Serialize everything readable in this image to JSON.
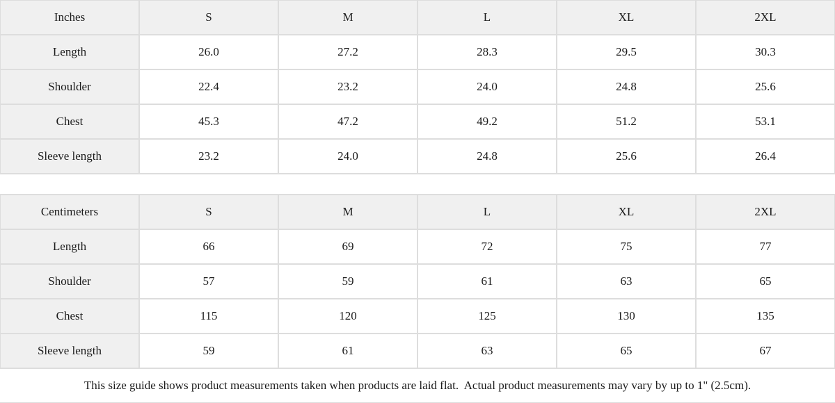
{
  "colors": {
    "header_bg": "#f0f0f0",
    "label_bg": "#f0f0f0",
    "border": "#dddddd",
    "text": "#1b1b1b",
    "page_bg": "#ffffff"
  },
  "tables": [
    {
      "unit": "Inches",
      "header": [
        "Inches",
        "S",
        "M",
        "L",
        "XL",
        "2XL"
      ],
      "rows": [
        {
          "label": "Length",
          "values": [
            "26.0",
            "27.2",
            "28.3",
            "29.5",
            "30.3"
          ]
        },
        {
          "label": "Shoulder",
          "values": [
            "22.4",
            "23.2",
            "24.0",
            "24.8",
            "25.6"
          ]
        },
        {
          "label": "Chest",
          "values": [
            "45.3",
            "47.2",
            "49.2",
            "51.2",
            "53.1"
          ]
        },
        {
          "label": "Sleeve length",
          "values": [
            "23.2",
            "24.0",
            "24.8",
            "25.6",
            "26.4"
          ]
        }
      ]
    },
    {
      "unit": "Centimeters",
      "header": [
        "Centimeters",
        "S",
        "M",
        "L",
        "XL",
        "2XL"
      ],
      "rows": [
        {
          "label": "Length",
          "values": [
            "66",
            "69",
            "72",
            "75",
            "77"
          ]
        },
        {
          "label": "Shoulder",
          "values": [
            "57",
            "59",
            "61",
            "63",
            "65"
          ]
        },
        {
          "label": "Chest",
          "values": [
            "115",
            "120",
            "125",
            "130",
            "135"
          ]
        },
        {
          "label": "Sleeve length",
          "values": [
            "59",
            "61",
            "63",
            "65",
            "67"
          ]
        }
      ]
    }
  ],
  "footer": {
    "note": "This size guide shows product measurements taken when products are laid flat.  Actual product measurements may vary by up to 1\" (2.5cm)."
  }
}
